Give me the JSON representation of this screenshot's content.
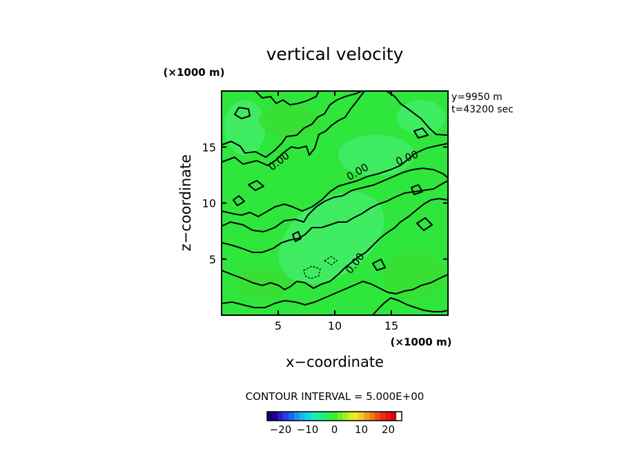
{
  "chart_data": {
    "type": "heatmap",
    "title": "vertical velocity",
    "xlabel": "x−coordinate",
    "ylabel": "z−coordinate",
    "x_unit": "(×1000 m)",
    "y_unit": "(×1000 m)",
    "xlim": [
      0,
      20
    ],
    "ylim": [
      0,
      20
    ],
    "x_ticks": [
      5,
      10,
      15
    ],
    "y_ticks": [
      5,
      10,
      15
    ],
    "annotations": [
      "y=9950  m",
      "t=43200  sec"
    ],
    "contour_interval_label": "CONTOUR INTERVAL = 5.000E+00",
    "contour_labels": [
      "0.00",
      "0.00",
      "0.00",
      "0.00"
    ],
    "colorbar": {
      "range": [
        -25,
        25
      ],
      "ticks": [
        -20,
        -10,
        0,
        10,
        20
      ],
      "tick_labels": [
        "−20",
        "−10",
        "0",
        "10",
        "20"
      ],
      "colors": [
        "#10006e",
        "#1e0096",
        "#2a1fc2",
        "#2a3ce6",
        "#1e66f0",
        "#1e8cf5",
        "#19b4f0",
        "#14d2e6",
        "#14e6c8",
        "#19f0a0",
        "#1ef078",
        "#28f050",
        "#3cf032",
        "#6cf028",
        "#a0f028",
        "#d2f028",
        "#f0e628",
        "#f0c81e",
        "#f0a01e",
        "#f07819",
        "#f05014",
        "#f02814",
        "#e61414",
        "#c80a0a",
        "#ffffff"
      ]
    },
    "colors": {
      "field_base": "#2ee63c",
      "field_light": "#46ee6e",
      "field_dark": "#3cdc32",
      "contour": "#000000"
    }
  }
}
